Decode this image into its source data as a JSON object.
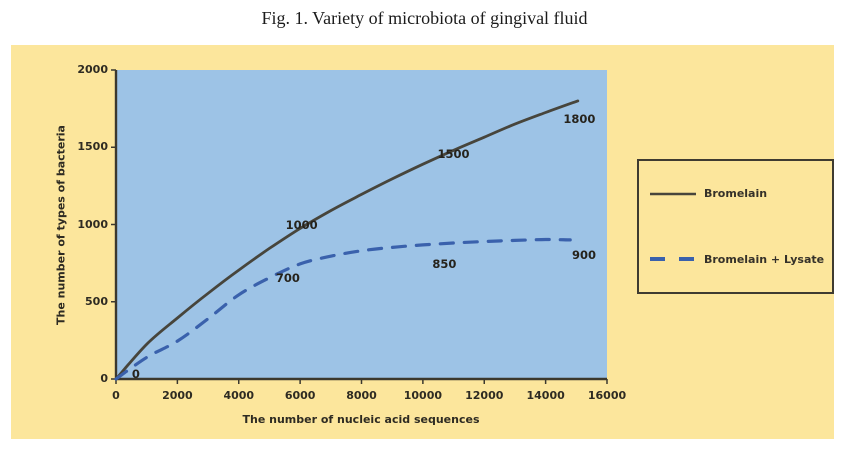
{
  "figure": {
    "caption": "Fig. 1. Variety of microbiota of gingival fluid"
  },
  "colors": {
    "page_bg": "#ffffff",
    "chart_bg": "#fce69c",
    "plot_bg": "#9dc3e6",
    "axis": "#3b382e",
    "tick_text": "#2e2b22",
    "bromelain_line": "#47453c",
    "lysate_line": "#3a61ac",
    "legend_border": "#3f3b31"
  },
  "chart_data": {
    "type": "line",
    "title": "Fig. 1. Variety of microbiota of gingival fluid",
    "xlabel": "The number of nucleic acid sequences",
    "ylabel": "The number of types of bacteria",
    "xlim": [
      0,
      16000
    ],
    "ylim": [
      0,
      2000
    ],
    "x_ticks": [
      0,
      2000,
      4000,
      6000,
      8000,
      10000,
      12000,
      14000,
      16000
    ],
    "y_ticks": [
      0,
      500,
      1000,
      1500,
      2000
    ],
    "grid": false,
    "legend_position": "right-outside",
    "series": [
      {
        "name": "Bromelain",
        "line_style": "solid",
        "color": "#47453c",
        "points": [
          [
            0,
            0
          ],
          [
            1000,
            225
          ],
          [
            2000,
            395
          ],
          [
            3000,
            555
          ],
          [
            4000,
            705
          ],
          [
            5000,
            845
          ],
          [
            6000,
            975
          ],
          [
            7000,
            1090
          ],
          [
            8000,
            1195
          ],
          [
            9000,
            1295
          ],
          [
            10000,
            1390
          ],
          [
            11000,
            1480
          ],
          [
            12000,
            1565
          ],
          [
            13000,
            1650
          ],
          [
            14000,
            1725
          ],
          [
            15050,
            1800
          ]
        ]
      },
      {
        "name": "Bromelain + Lysate",
        "line_style": "dashed",
        "color": "#3a61ac",
        "points": [
          [
            0,
            0
          ],
          [
            1000,
            140
          ],
          [
            2000,
            245
          ],
          [
            3000,
            390
          ],
          [
            4000,
            545
          ],
          [
            5000,
            655
          ],
          [
            6000,
            745
          ],
          [
            7000,
            795
          ],
          [
            8000,
            830
          ],
          [
            9000,
            852
          ],
          [
            10000,
            868
          ],
          [
            11000,
            880
          ],
          [
            12000,
            890
          ],
          [
            13000,
            897
          ],
          [
            14000,
            903
          ],
          [
            14800,
            900
          ]
        ]
      }
    ],
    "value_labels": [
      {
        "text": "0",
        "x": 650,
        "y": 30
      },
      {
        "text": "1000",
        "x": 6050,
        "y": 1000
      },
      {
        "text": "1500",
        "x": 11000,
        "y": 1455
      },
      {
        "text": "1800",
        "x": 15100,
        "y": 1680
      },
      {
        "text": "700",
        "x": 5600,
        "y": 655
      },
      {
        "text": "850",
        "x": 10700,
        "y": 745
      },
      {
        "text": "900",
        "x": 15250,
        "y": 805
      }
    ]
  }
}
